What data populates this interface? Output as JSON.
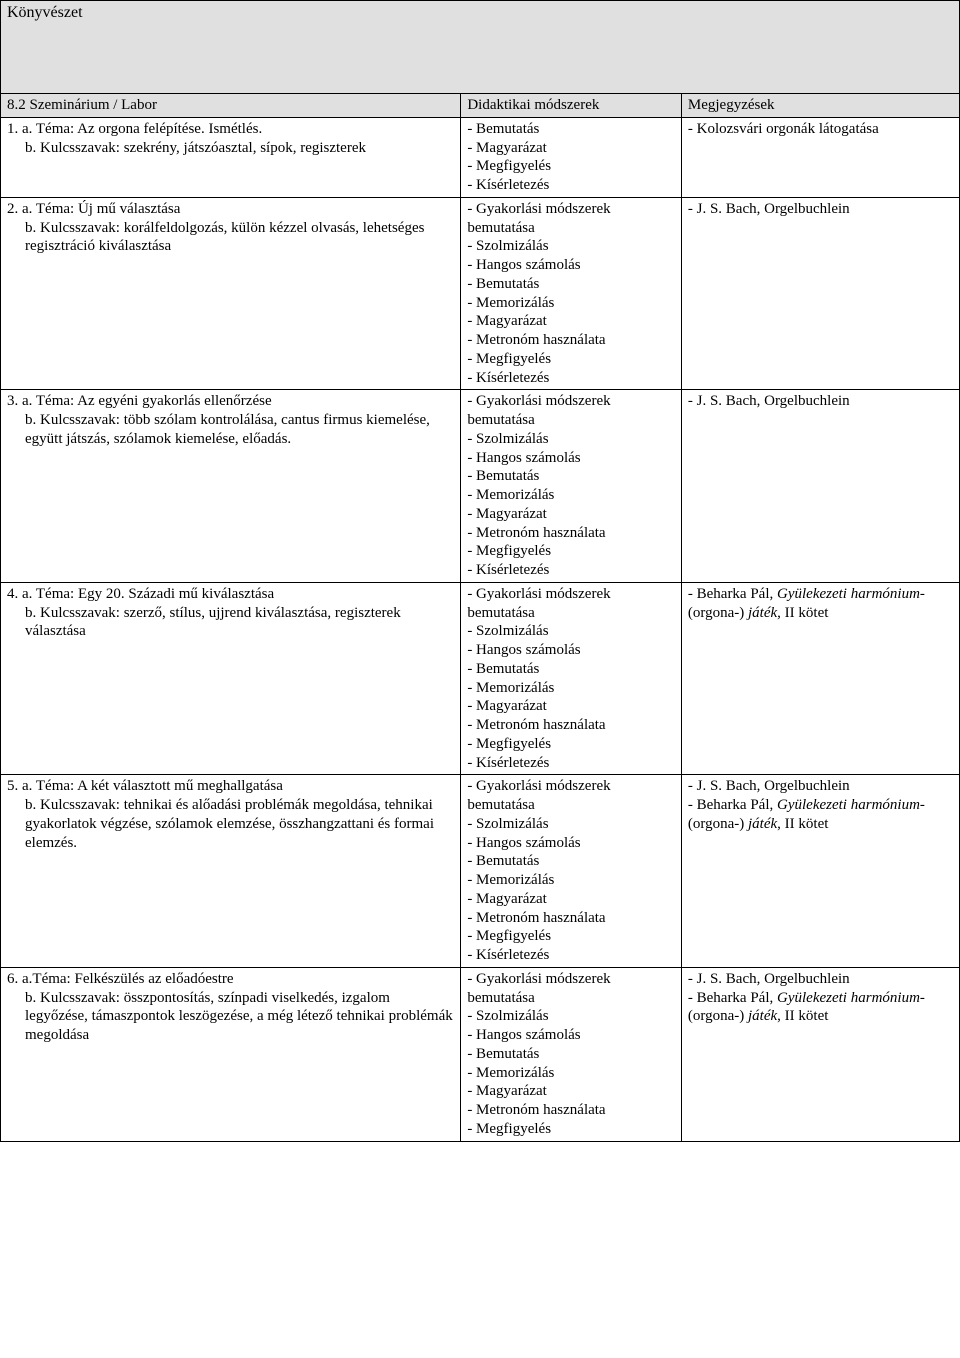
{
  "colors": {
    "header_bg": "#e0e0e0",
    "border": "#000000",
    "text": "#000000",
    "page_bg": "#ffffff"
  },
  "typography": {
    "font_family": "Times New Roman",
    "body_size_pt": 11,
    "header_size_pt": 12
  },
  "header": {
    "title": "Könyvészet",
    "col_headers": {
      "seminar": "8.2 Szeminárium / Labor",
      "methods": "Didaktikai módszerek",
      "notes": "Megjegyzések"
    }
  },
  "rows": [
    {
      "topic_a": "1. a. Téma: Az orgona felépítése. Ismétlés.",
      "topic_b": "b. Kulcsszavak: szekrény, játszóasztal, sípok, regiszterek",
      "methods": [
        "- Bemutatás",
        "- Magyarázat",
        "- Megfigyelés",
        "- Kísérletezés"
      ],
      "notes": [
        {
          "text": "- Kolozsvári orgonák látogatása",
          "italic": false
        }
      ]
    },
    {
      "topic_a": "2. a. Téma: Új mű választása",
      "topic_b": "b. Kulcsszavak: korálfeldolgozás, külön kézzel olvasás, lehetséges regisztráció kiválasztása",
      "methods": [
        "- Gyakorlási módszerek bemutatása",
        "- Szolmizálás",
        "- Hangos számolás",
        "- Bemutatás",
        "- Memorizálás",
        "- Magyarázat",
        "- Metronóm használata",
        "- Megfigyelés",
        "- Kísérletezés"
      ],
      "notes": [
        {
          "text": "- J. S. Bach, Orgelbuchlein",
          "italic": false
        }
      ]
    },
    {
      "topic_a": "3. a. Téma: Az egyéni gyakorlás ellenőrzése",
      "topic_b": "b. Kulcsszavak: több szólam kontrolálása, cantus firmus kiemelése, együtt játszás, szólamok kiemelése, előadás.",
      "methods": [
        "- Gyakorlási módszerek bemutatása",
        "- Szolmizálás",
        "- Hangos számolás",
        "- Bemutatás",
        "- Memorizálás",
        "- Magyarázat",
        "- Metronóm használata",
        "- Megfigyelés",
        "- Kísérletezés"
      ],
      "notes": [
        {
          "text": "- J. S. Bach, Orgelbuchlein",
          "italic": false
        }
      ]
    },
    {
      "topic_a": "4. a. Téma: Egy 20. Századi mű kiválasztása",
      "topic_b": "b. Kulcsszavak: szerző, stílus, ujjrend kiválasztása, regiszterek választása",
      "methods": [
        "- Gyakorlási módszerek bemutatása",
        "- Szolmizálás",
        "- Hangos számolás",
        "- Bemutatás",
        "- Memorizálás",
        "- Magyarázat",
        "- Metronóm használata",
        "- Megfigyelés",
        "- Kísérletezés"
      ],
      "notes": [
        {
          "text": "- Beharka Pál, ",
          "italic": false
        },
        {
          "text": "Gyülekezeti harmónium-",
          "italic": true
        },
        {
          "text": " (orgona-) ",
          "italic": false
        },
        {
          "text": "játék",
          "italic": true
        },
        {
          "text": ", II kötet",
          "italic": false
        }
      ]
    },
    {
      "topic_a": "5. a. Téma: A két választott mű meghallgatása",
      "topic_b": "b. Kulcsszavak: tehnikai és alőadási problémák megoldása, tehnikai gyakorlatok végzése, szólamok elemzése, összhangzattani és formai elemzés.",
      "methods": [
        "- Gyakorlási módszerek bemutatása",
        "- Szolmizálás",
        "- Hangos számolás",
        "- Bemutatás",
        "- Memorizálás",
        "- Magyarázat",
        "- Metronóm használata",
        "- Megfigyelés",
        "- Kísérletezés"
      ],
      "notes": [
        {
          "text": "- J. S. Bach, Orgelbuchlein",
          "italic": false,
          "break": true
        },
        {
          "text": "- Beharka Pál, ",
          "italic": false
        },
        {
          "text": "Gyülekezeti harmónium-",
          "italic": true
        },
        {
          "text": " (orgona-) ",
          "italic": false
        },
        {
          "text": "játék",
          "italic": true
        },
        {
          "text": ", II kötet",
          "italic": false
        }
      ]
    },
    {
      "topic_a": "6. a.Téma: Felkészülés az előadóestre",
      "topic_b": "b. Kulcsszavak: összpontosítás, színpadi viselkedés, izgalom legyőzése, támaszpontok leszögezése, a még létező tehnikai problémák megoldása",
      "methods": [
        "- Gyakorlási módszerek bemutatása",
        "- Szolmizálás",
        "- Hangos számolás",
        "- Bemutatás",
        "- Memorizálás",
        "- Magyarázat",
        "- Metronóm használata",
        "- Megfigyelés"
      ],
      "notes": [
        {
          "text": "- J. S. Bach, Orgelbuchlein",
          "italic": false,
          "break": true
        },
        {
          "text": "- Beharka Pál, ",
          "italic": false
        },
        {
          "text": "Gyülekezeti harmónium-",
          "italic": true
        },
        {
          "text": " (orgona-) ",
          "italic": false
        },
        {
          "text": "játék",
          "italic": true
        },
        {
          "text": ", II kötet",
          "italic": false
        }
      ]
    }
  ]
}
